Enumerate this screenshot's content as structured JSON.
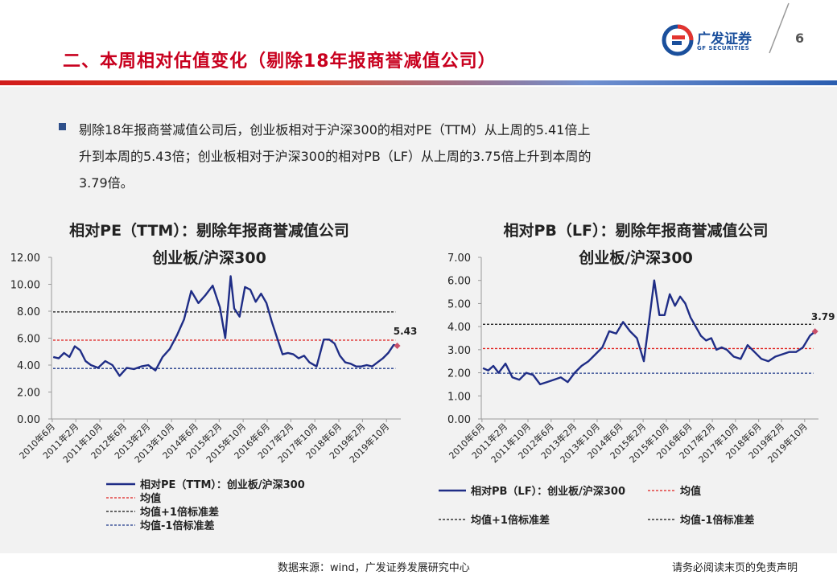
{
  "page": {
    "title": "二、本周相对估值变化（剔除18年报商誉减值公司）",
    "page_number": "6",
    "logo": {
      "name": "广发证券",
      "en": "GF SECURITIES"
    },
    "bullet": [
      "剔除18年报商誉减值公司后，创业板相对于沪深300的相对PE（TTM）从上周的5.41倍上",
      "升到本周的5.43倍；创业板相对于沪深300的相对PB（LF）从上周的3.75倍上升到本周的",
      "3.79倍。"
    ],
    "footer_source": "数据来源：wind，广发证券发展研究中心",
    "footer_disclaimer": "请务必阅读末页的免责声明"
  },
  "colors": {
    "title_red": "#c8001e",
    "series_navy": "#1f2d86",
    "mean_red": "#e0201e",
    "plus_black": "#111111",
    "minus_navy": "#1f3a8a",
    "endpoint": "#c9506a"
  },
  "chart_data": [
    {
      "type": "line",
      "title_line1": "相对PE（TTM）：剔除年报商誉减值公司",
      "title_line2": "创业板/沪深300",
      "ylim": [
        0,
        12
      ],
      "yticks": [
        "0.00",
        "2.00",
        "4.00",
        "6.00",
        "8.00",
        "10.00",
        "12.00"
      ],
      "xticks": [
        "2010年6月",
        "2011年2月",
        "2011年10月",
        "2012年6月",
        "2013年2月",
        "2013年10月",
        "2014年6月",
        "2015年2月",
        "2015年10月",
        "2016年6月",
        "2017年2月",
        "2017年10月",
        "2018年6月",
        "2019年2月",
        "2019年10月"
      ],
      "series": {
        "name": "相对PE（TTM）：创业板/沪深300",
        "x": [
          2010.45,
          2010.6,
          2010.75,
          2010.9,
          2011.05,
          2011.2,
          2011.35,
          2011.5,
          2011.7,
          2011.9,
          2012.1,
          2012.3,
          2012.5,
          2012.7,
          2012.9,
          2013.1,
          2013.3,
          2013.5,
          2013.7,
          2013.9,
          2014.1,
          2014.3,
          2014.5,
          2014.7,
          2014.9,
          2015.1,
          2015.25,
          2015.4,
          2015.5,
          2015.65,
          2015.8,
          2015.95,
          2016.1,
          2016.25,
          2016.4,
          2016.55,
          2016.7,
          2016.85,
          2017.0,
          2017.15,
          2017.3,
          2017.45,
          2017.6,
          2017.8,
          2018.0,
          2018.15,
          2018.3,
          2018.45,
          2018.6,
          2018.75,
          2018.9,
          2019.05,
          2019.2,
          2019.35,
          2019.5,
          2019.65,
          2019.8,
          2019.95,
          2020.05
        ],
        "y": [
          4.6,
          4.5,
          4.9,
          4.6,
          5.4,
          5.1,
          4.3,
          4.0,
          3.8,
          4.3,
          4.0,
          3.2,
          3.8,
          3.7,
          3.9,
          4.0,
          3.6,
          4.6,
          5.2,
          6.2,
          7.4,
          9.5,
          8.6,
          9.2,
          9.9,
          8.3,
          6.0,
          10.6,
          8.2,
          7.6,
          9.8,
          9.6,
          8.7,
          9.3,
          8.6,
          7.2,
          6.0,
          4.8,
          4.9,
          4.8,
          4.5,
          4.7,
          4.2,
          3.9,
          5.9,
          5.9,
          5.6,
          4.7,
          4.2,
          4.1,
          3.9,
          3.9,
          4.0,
          3.9,
          4.2,
          4.5,
          4.9,
          5.5,
          5.43
        ]
      },
      "mean": 5.85,
      "plus1sd": 7.95,
      "minus1sd": 3.75,
      "end_label": "5.43",
      "legend": [
        "相对PE（TTM）：创业板/沪深300",
        "均值",
        "均值+1倍标准差",
        "均值-1倍标准差"
      ]
    },
    {
      "type": "line",
      "title_line1": "相对PB（LF）：剔除年报商誉减值公司",
      "title_line2": "创业板/沪深300",
      "ylim": [
        0,
        7
      ],
      "yticks": [
        "0.00",
        "1.00",
        "2.00",
        "3.00",
        "4.00",
        "5.00",
        "6.00",
        "7.00"
      ],
      "xticks": [
        "2010年6月",
        "2011年2月",
        "2011年10月",
        "2012年6月",
        "2013年2月",
        "2013年10月",
        "2014年6月",
        "2015年2月",
        "2015年10月",
        "2016年6月",
        "2017年2月",
        "2017年10月",
        "2018年6月",
        "2019年2月",
        "2019年10月"
      ],
      "series": {
        "name": "相对PB（LF）：创业板/沪深300",
        "x": [
          2010.45,
          2010.6,
          2010.75,
          2010.9,
          2011.1,
          2011.3,
          2011.5,
          2011.7,
          2011.9,
          2012.1,
          2012.3,
          2012.5,
          2012.7,
          2012.9,
          2013.1,
          2013.3,
          2013.5,
          2013.7,
          2013.9,
          2014.1,
          2014.3,
          2014.5,
          2014.7,
          2014.9,
          2015.1,
          2015.25,
          2015.4,
          2015.55,
          2015.7,
          2015.85,
          2016.0,
          2016.15,
          2016.3,
          2016.45,
          2016.6,
          2016.75,
          2016.9,
          2017.05,
          2017.2,
          2017.35,
          2017.5,
          2017.7,
          2017.9,
          2018.1,
          2018.3,
          2018.5,
          2018.7,
          2018.9,
          2019.1,
          2019.3,
          2019.5,
          2019.7,
          2019.9,
          2020.05
        ],
        "y": [
          2.2,
          2.1,
          2.3,
          2.0,
          2.4,
          1.8,
          1.7,
          2.0,
          1.9,
          1.5,
          1.6,
          1.7,
          1.8,
          1.6,
          2.0,
          2.3,
          2.5,
          2.8,
          3.1,
          3.8,
          3.7,
          4.2,
          3.8,
          3.5,
          2.5,
          4.2,
          6.0,
          4.5,
          4.5,
          5.4,
          4.9,
          5.3,
          5.0,
          4.4,
          4.0,
          3.6,
          3.4,
          3.5,
          3.0,
          3.1,
          3.0,
          2.7,
          2.6,
          3.2,
          2.9,
          2.6,
          2.5,
          2.7,
          2.8,
          2.9,
          2.9,
          3.1,
          3.6,
          3.79
        ]
      },
      "mean": 3.05,
      "plus1sd": 4.1,
      "minus1sd": 1.98,
      "end_label": "3.79",
      "legend": [
        "相对PB（LF）：创业板/沪深300",
        "均值",
        "均值+1倍标准差",
        "均值-1倍标准差"
      ]
    }
  ]
}
